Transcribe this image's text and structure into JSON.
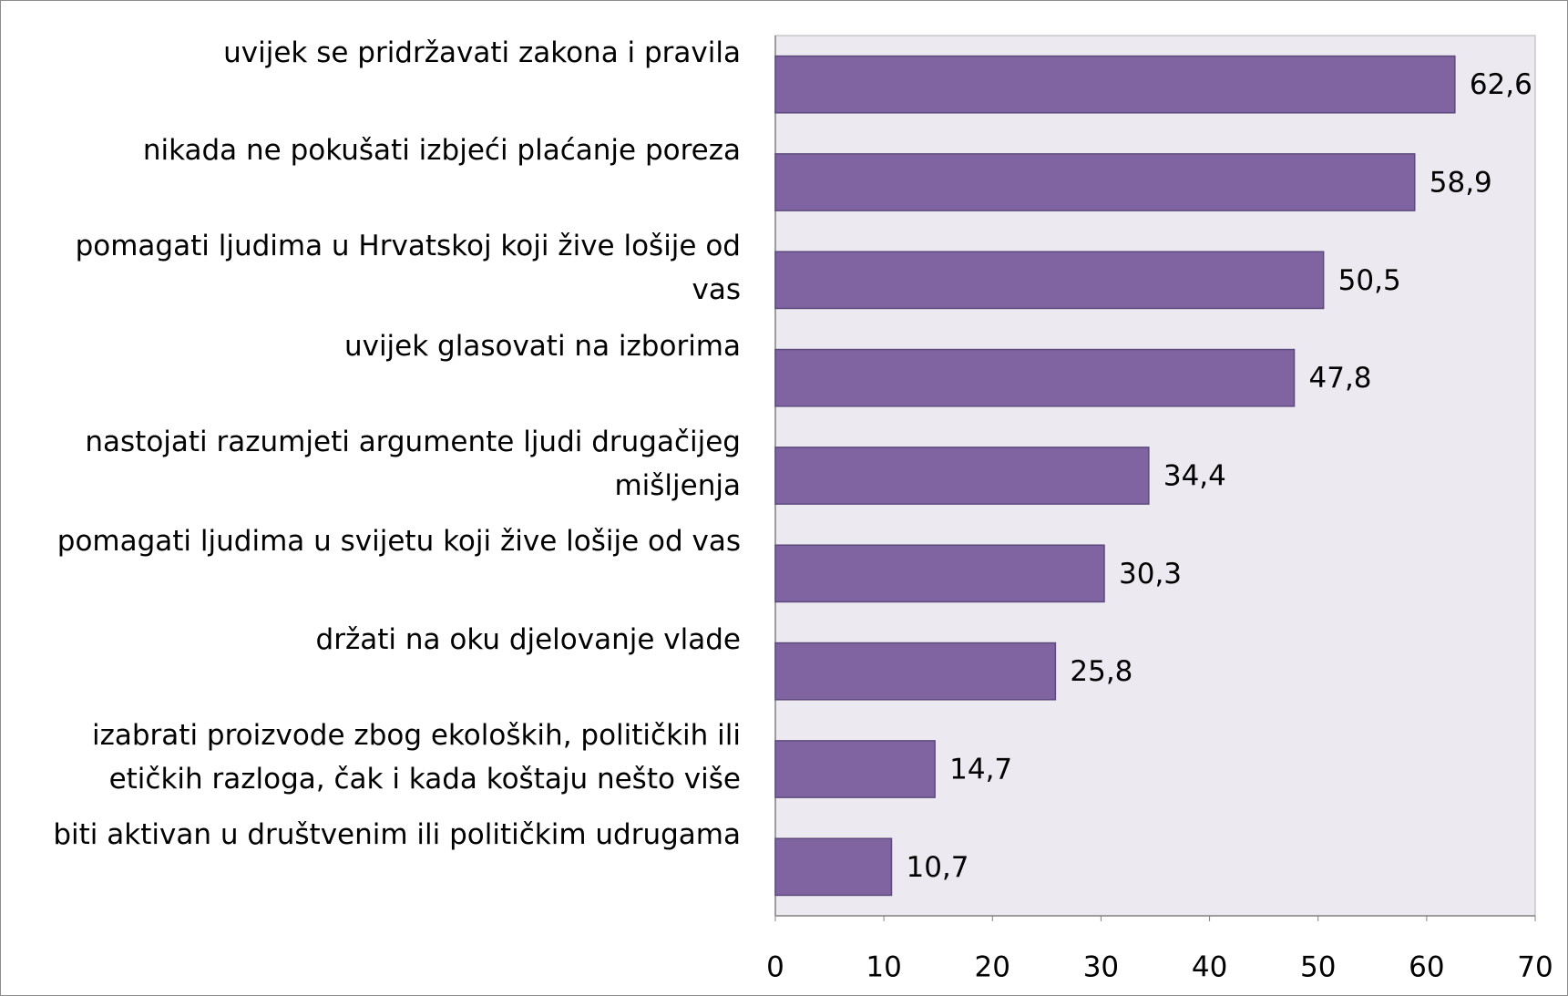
{
  "chart_data": {
    "type": "bar",
    "orientation": "horizontal",
    "categories": [
      "uvijek se pridržavati zakona i pravila",
      "nikada ne pokušati izbjeći plaćanje poreza",
      "pomagati ljudima u Hrvatskoj koji žive lošije od vas",
      "uvijek glasovati na izborima",
      "nastojati razumjeti argumente ljudi drugačijeg mišljenja",
      "pomagati ljudima u svijetu koji žive lošije od vas",
      "držati na oku djelovanje vlade",
      "izabrati proizvode zbog ekoloških, političkih ili etičkih razloga, čak i kada koštaju nešto više",
      "biti aktivan u društvenim ili političkim udrugama"
    ],
    "values": [
      62.6,
      58.9,
      50.5,
      47.8,
      34.4,
      30.3,
      25.8,
      14.7,
      10.7
    ],
    "value_labels": [
      "62,6",
      "58,9",
      "50,5",
      "47,8",
      "34,4",
      "30,3",
      "25,8",
      "14,7",
      "10,7"
    ],
    "color": "#8064a2",
    "xlim": [
      0,
      70
    ],
    "xticks": [
      0,
      10,
      20,
      30,
      40,
      50,
      60,
      70
    ],
    "grid": false
  }
}
